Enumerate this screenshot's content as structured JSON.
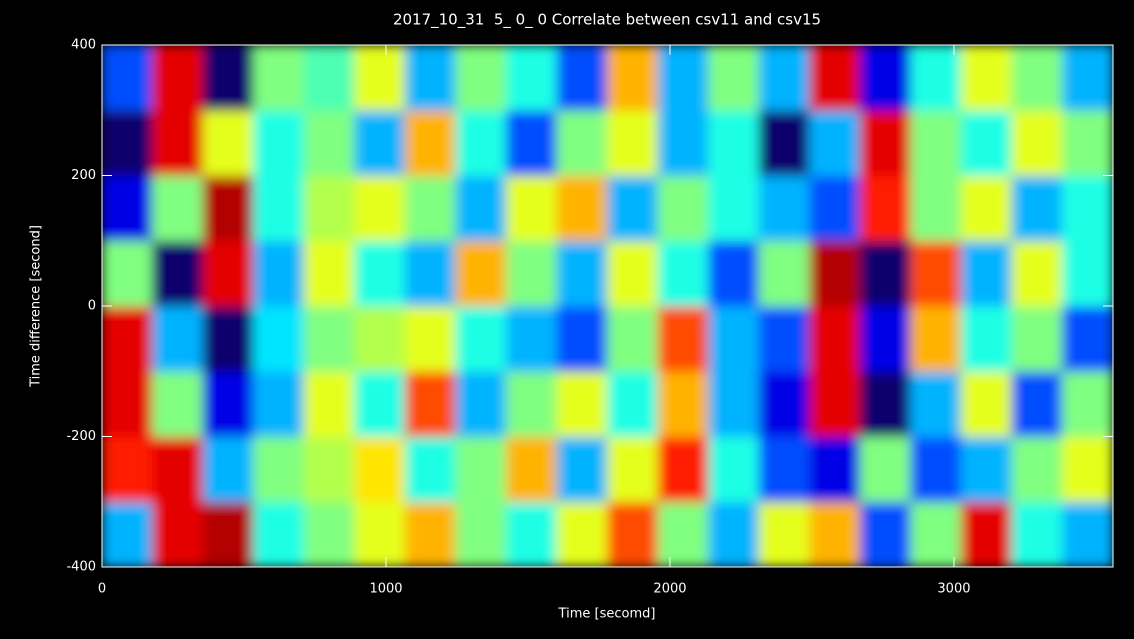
{
  "chart_data": {
    "type": "heatmap",
    "title": "2017_10_31  5_ 0_ 0 Correlate between csv11 and csv15",
    "x_label": "Time [secomd]",
    "y_label": "Time difference [second]",
    "xlim": [
      0,
      3560
    ],
    "ylim": [
      -400,
      400
    ],
    "xticks": [
      0,
      1000,
      2000,
      3000
    ],
    "yticks": [
      -400,
      -200,
      0,
      200,
      400
    ],
    "colormap": "jet",
    "x_edges": [
      0,
      178,
      356,
      534,
      712,
      890,
      1068,
      1246,
      1424,
      1602,
      1780,
      1958,
      2136,
      2314,
      2492,
      2670,
      2848,
      3026,
      3204,
      3382,
      3560
    ],
    "y_edges": [
      -400,
      -300,
      -200,
      -100,
      0,
      100,
      200,
      300,
      400
    ],
    "z": [
      [
        0.3,
        0.9,
        0.95,
        0.4,
        0.5,
        0.6,
        0.7,
        0.5,
        0.4,
        0.6,
        0.8,
        0.5,
        0.3,
        0.6,
        0.7,
        0.2,
        0.5,
        0.9,
        0.4,
        0.3
      ],
      [
        0.85,
        0.9,
        0.3,
        0.5,
        0.55,
        0.65,
        0.4,
        0.5,
        0.7,
        0.3,
        0.6,
        0.85,
        0.4,
        0.2,
        0.1,
        0.5,
        0.2,
        0.3,
        0.5,
        0.6
      ],
      [
        0.9,
        0.5,
        0.1,
        0.3,
        0.6,
        0.4,
        0.8,
        0.3,
        0.5,
        0.6,
        0.4,
        0.7,
        0.3,
        0.1,
        0.9,
        0.05,
        0.3,
        0.6,
        0.2,
        0.5
      ],
      [
        0.9,
        0.3,
        0.05,
        0.35,
        0.5,
        0.55,
        0.6,
        0.4,
        0.3,
        0.2,
        0.5,
        0.8,
        0.3,
        0.2,
        0.9,
        0.1,
        0.7,
        0.4,
        0.5,
        0.2
      ],
      [
        0.5,
        0.05,
        0.9,
        0.3,
        0.6,
        0.4,
        0.3,
        0.7,
        0.5,
        0.3,
        0.6,
        0.4,
        0.2,
        0.5,
        0.95,
        0.05,
        0.8,
        0.3,
        0.6,
        0.4
      ],
      [
        0.1,
        0.5,
        0.95,
        0.4,
        0.55,
        0.6,
        0.5,
        0.3,
        0.6,
        0.7,
        0.3,
        0.5,
        0.4,
        0.3,
        0.2,
        0.85,
        0.5,
        0.6,
        0.3,
        0.4
      ],
      [
        0.05,
        0.9,
        0.6,
        0.4,
        0.5,
        0.3,
        0.7,
        0.4,
        0.2,
        0.5,
        0.6,
        0.3,
        0.4,
        0.05,
        0.3,
        0.9,
        0.5,
        0.4,
        0.6,
        0.5
      ],
      [
        0.2,
        0.9,
        0.05,
        0.5,
        0.45,
        0.6,
        0.3,
        0.5,
        0.4,
        0.2,
        0.7,
        0.3,
        0.5,
        0.3,
        0.9,
        0.1,
        0.4,
        0.6,
        0.5,
        0.3
      ]
    ]
  }
}
